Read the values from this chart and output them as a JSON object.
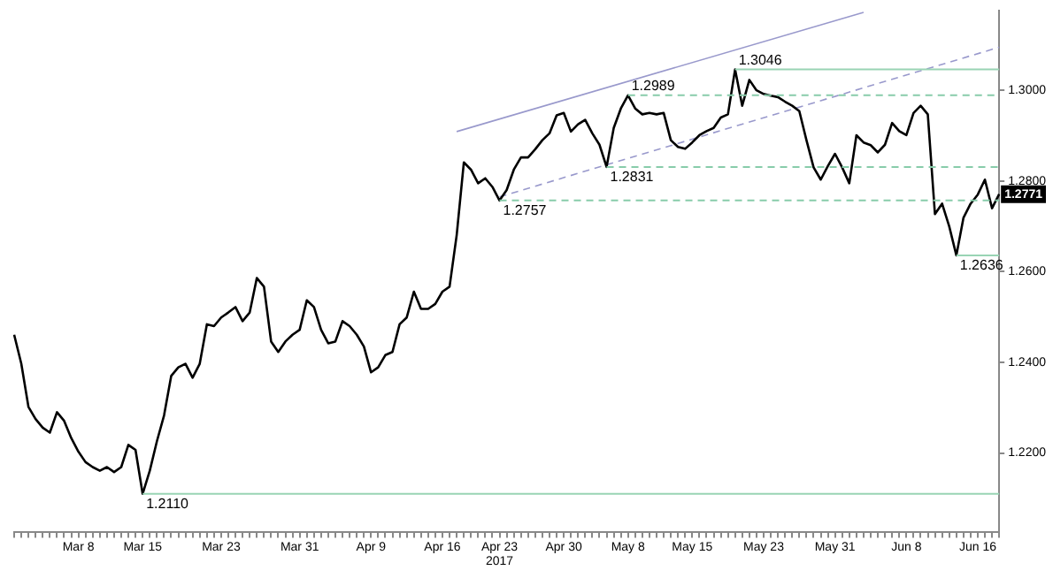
{
  "chart_data": {
    "type": "line",
    "categories": [
      null,
      null,
      null,
      null,
      null,
      null,
      null,
      null,
      null,
      "Mar 8",
      null,
      null,
      null,
      null,
      null,
      null,
      null,
      null,
      "Mar 15",
      null,
      null,
      null,
      null,
      null,
      null,
      null,
      null,
      null,
      null,
      "Mar 23",
      null,
      null,
      null,
      null,
      null,
      null,
      null,
      null,
      null,
      null,
      "Mar 31",
      null,
      null,
      null,
      null,
      null,
      null,
      null,
      null,
      null,
      "Apr 9",
      null,
      null,
      null,
      null,
      null,
      null,
      null,
      null,
      null,
      "Apr 16",
      null,
      null,
      null,
      null,
      null,
      null,
      null,
      "Apr 23\n2017",
      null,
      null,
      null,
      null,
      null,
      null,
      null,
      null,
      "Apr 30",
      null,
      null,
      null,
      null,
      null,
      null,
      null,
      null,
      "May 8",
      null,
      null,
      null,
      null,
      null,
      null,
      null,
      null,
      "May 15",
      null,
      null,
      null,
      null,
      null,
      null,
      null,
      null,
      null,
      "May 23",
      null,
      null,
      null,
      null,
      null,
      null,
      null,
      null,
      null,
      "May 31",
      null,
      null,
      null,
      null,
      null,
      null,
      null,
      null,
      null,
      "Jun 8",
      null,
      null,
      null,
      null,
      null,
      null,
      null,
      null,
      null,
      "Jun 16",
      null,
      null,
      null
    ],
    "series": [
      {
        "color": "#000000",
        "line_style": "solid",
        "values": [
          1.2461,
          1.2397,
          1.2302,
          1.2275,
          1.2256,
          1.2245,
          1.229,
          1.2271,
          1.2233,
          1.2203,
          1.218,
          1.2169,
          1.2161,
          1.2169,
          1.2158,
          1.2169,
          1.2218,
          1.2207,
          1.211,
          1.2161,
          1.2226,
          1.2283,
          1.237,
          1.2389,
          1.2397,
          1.2366,
          1.2397,
          1.2484,
          1.248,
          1.2499,
          1.251,
          1.2522,
          1.2491,
          1.251,
          1.2586,
          1.2567,
          1.2446,
          1.2423,
          1.2446,
          1.2461,
          1.2472,
          1.2537,
          1.2522,
          1.2472,
          1.2442,
          1.2446,
          1.2491,
          1.248,
          1.2461,
          1.2435,
          1.2378,
          1.2389,
          1.2416,
          1.2423,
          1.2484,
          1.2499,
          1.2556,
          1.2518,
          1.2518,
          1.2529,
          1.2556,
          1.2567,
          1.2681,
          1.2841,
          1.2825,
          1.2795,
          1.2806,
          1.2787,
          1.2757,
          1.278,
          1.2825,
          1.2852,
          1.2852,
          1.287,
          1.289,
          1.2905,
          1.2945,
          1.295,
          1.2909,
          1.2925,
          1.2935,
          1.2905,
          1.288,
          1.2831,
          1.2917,
          1.296,
          1.2989,
          1.296,
          1.2947,
          1.295,
          1.2947,
          1.295,
          1.289,
          1.2875,
          1.2871,
          1.2885,
          1.2901,
          1.291,
          1.2917,
          1.294,
          1.2947,
          1.3046,
          1.2966,
          1.3023,
          1.3,
          1.2992,
          1.2988,
          1.2985,
          1.2975,
          1.2966,
          1.2954,
          1.289,
          1.283,
          1.2803,
          1.2833,
          1.286,
          1.283,
          1.2795,
          1.2901,
          1.2885,
          1.2879,
          1.2863,
          1.288,
          1.2928,
          1.291,
          1.2901,
          1.295,
          1.2966,
          1.2947,
          1.2727,
          1.275,
          1.27,
          1.2636,
          1.2719,
          1.275,
          1.277,
          1.2803,
          1.274,
          1.2771
        ]
      },
      {
        "color": "#9999cc",
        "line_style": "solid",
        "values": [
          null,
          null,
          null,
          null,
          null,
          null,
          null,
          null,
          null,
          null,
          null,
          null,
          null,
          null,
          null,
          null,
          null,
          null,
          null,
          null,
          null,
          null,
          null,
          null,
          null,
          null,
          null,
          null,
          null,
          null,
          null,
          null,
          null,
          null,
          null,
          null,
          null,
          null,
          null,
          null,
          null,
          null,
          null,
          null,
          null,
          null,
          null,
          null,
          null,
          null,
          null,
          null,
          null,
          null,
          null,
          null,
          null,
          null,
          null,
          null,
          null,
          null,
          1.2909,
          null,
          null,
          null,
          null,
          null,
          null,
          null,
          null,
          null,
          null,
          null,
          null,
          null,
          null,
          null,
          null,
          null,
          null,
          null,
          null,
          null,
          null,
          null,
          null,
          null,
          null,
          null,
          null,
          null,
          null,
          null,
          null,
          null,
          null,
          null,
          null,
          null,
          null,
          null,
          null,
          null,
          null,
          null,
          null,
          null,
          null,
          null,
          null,
          null,
          null,
          null,
          null,
          null,
          null,
          null,
          null,
          1.3172,
          null,
          null,
          null,
          null,
          null,
          null,
          null,
          null,
          null,
          null,
          null,
          null,
          null,
          null,
          null,
          null,
          null,
          null,
          null
        ]
      },
      {
        "color": "#9999cc",
        "line_style": "dashed",
        "values": [
          null,
          null,
          null,
          null,
          null,
          null,
          null,
          null,
          null,
          null,
          null,
          null,
          null,
          null,
          null,
          null,
          null,
          null,
          null,
          null,
          null,
          null,
          null,
          null,
          null,
          null,
          null,
          null,
          null,
          null,
          null,
          null,
          null,
          null,
          null,
          null,
          null,
          null,
          null,
          null,
          null,
          null,
          null,
          null,
          null,
          null,
          null,
          null,
          null,
          null,
          null,
          null,
          null,
          null,
          null,
          null,
          null,
          null,
          null,
          null,
          null,
          null,
          null,
          null,
          null,
          null,
          null,
          null,
          1.2765,
          null,
          null,
          null,
          null,
          null,
          null,
          null,
          null,
          null,
          null,
          null,
          null,
          null,
          null,
          null,
          null,
          null,
          null,
          null,
          null,
          null,
          null,
          null,
          null,
          null,
          null,
          null,
          null,
          null,
          null,
          null,
          null,
          null,
          null,
          null,
          null,
          null,
          null,
          null,
          null,
          null,
          null,
          null,
          null,
          null,
          null,
          null,
          null,
          null,
          null,
          null,
          null,
          null,
          null,
          null,
          null,
          null,
          null,
          null,
          null,
          null,
          null,
          null,
          null,
          null,
          null,
          null,
          null,
          null,
          1.3095
        ]
      }
    ],
    "ylim": [
      1.2025,
      1.3175
    ],
    "yticks": [
      {
        "value": 1.22,
        "label": "1.2200"
      },
      {
        "value": 1.24,
        "label": "1.2400"
      },
      {
        "value": 1.26,
        "label": "1.2600"
      },
      {
        "value": 1.28,
        "label": "1.2800"
      },
      {
        "value": 1.3,
        "label": "1.3000"
      }
    ],
    "ref_lines": [
      {
        "axis": "y",
        "value": 1.211,
        "label": "1.2110",
        "color": "#99d4b4",
        "line_style": "solid"
      },
      {
        "axis": "y",
        "value": 1.2757,
        "label": "1.2757",
        "color": "#88ccaa",
        "line_style": "dashed"
      },
      {
        "axis": "y",
        "value": 1.2831,
        "label": "1.2831",
        "color": "#88ccaa",
        "line_style": "dashed"
      },
      {
        "axis": "y",
        "value": 1.2989,
        "label": "1.2989",
        "color": "#88ccaa",
        "line_style": "dashed"
      },
      {
        "axis": "y",
        "value": 1.3046,
        "label": "1.3046",
        "color": "#99d4b4",
        "line_style": "solid"
      },
      {
        "axis": "y",
        "value": 1.2636,
        "label": "1.2636",
        "color": "#99d4b4",
        "line_style": "solid"
      }
    ],
    "annotations": [
      {
        "text": "1.2771",
        "y": 1.2771
      }
    ],
    "grid": false,
    "legend": false
  }
}
